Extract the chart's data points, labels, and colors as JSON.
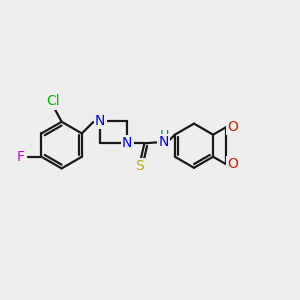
{
  "background_color": "#eeeeee",
  "bond_color": "#1a1a1a",
  "bond_width": 1.6,
  "atoms": {
    "Cl": {
      "color": "#00bb00",
      "fontsize": 10
    },
    "F": {
      "color": "#cc00cc",
      "fontsize": 10
    },
    "N": {
      "color": "#0000ee",
      "fontsize": 10
    },
    "H": {
      "color": "#008888",
      "fontsize": 10
    },
    "S": {
      "color": "#bbaa00",
      "fontsize": 10
    },
    "O": {
      "color": "#cc2200",
      "fontsize": 10
    }
  },
  "fig_width": 3.0,
  "fig_height": 3.0,
  "dpi": 100,
  "xlim": [
    0,
    12
  ],
  "ylim": [
    0,
    10
  ]
}
